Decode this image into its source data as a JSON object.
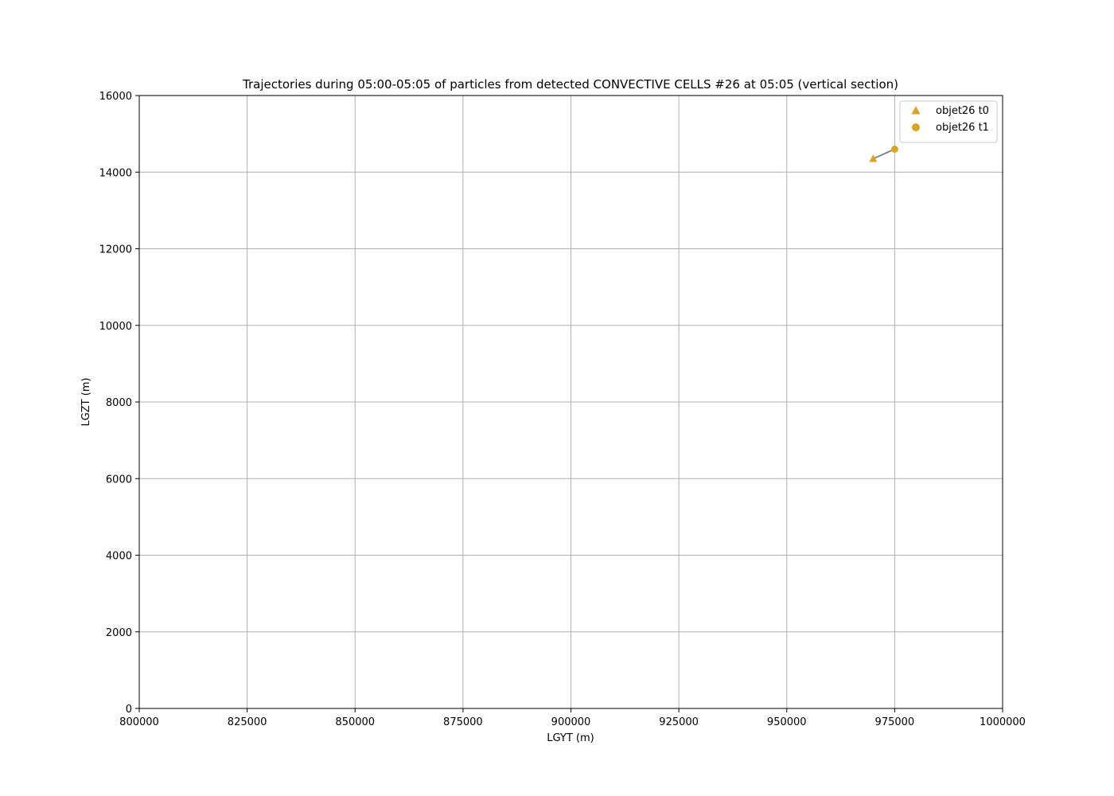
{
  "chart_data": {
    "type": "scatter",
    "title": "Trajectories during 05:00-05:05 of particles from detected CONVECTIVE CELLS #26 at 05:05 (vertical section)",
    "xlabel": "LGYT (m)",
    "ylabel": "LGZT (m)",
    "xlim": [
      800000,
      1000000
    ],
    "ylim": [
      0,
      16000
    ],
    "xticks": [
      800000,
      825000,
      850000,
      875000,
      900000,
      925000,
      950000,
      975000,
      1000000
    ],
    "yticks": [
      0,
      2000,
      4000,
      6000,
      8000,
      10000,
      12000,
      14000,
      16000
    ],
    "xtick_labels": [
      "800000",
      "825000",
      "850000",
      "875000",
      "900000",
      "925000",
      "950000",
      "975000",
      "1000000"
    ],
    "ytick_labels": [
      "0",
      "2000",
      "4000",
      "6000",
      "8000",
      "10000",
      "12000",
      "14000",
      "16000"
    ],
    "grid": true,
    "legend_position": "top-right",
    "series": [
      {
        "name": "objet26 t0",
        "marker": "triangle",
        "color": "#daa520",
        "points": [
          [
            970000,
            14350
          ]
        ]
      },
      {
        "name": "objet26 t1",
        "marker": "circle",
        "color": "#daa520",
        "points": [
          [
            975000,
            14600
          ]
        ]
      }
    ],
    "trajectories": [
      {
        "color": "#808080",
        "points": [
          [
            970000,
            14350
          ],
          [
            975000,
            14600
          ]
        ]
      }
    ]
  }
}
